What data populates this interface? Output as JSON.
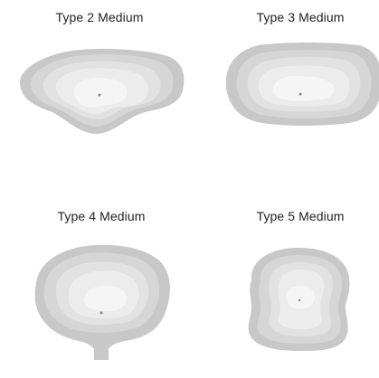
{
  "panels": [
    {
      "title": "Type 2 Medium"
    },
    {
      "title": "Type 3 Medium"
    },
    {
      "title": "Type 4 Medium"
    },
    {
      "title": "Type 5 Medium"
    }
  ],
  "colors": {
    "outer": "#c8c8c8",
    "ring2": "#d6d6d6",
    "ring3": "#e2e2e2",
    "ring4": "#ececec",
    "inner": "#f5f5f5",
    "center_dot": "#888888",
    "text": "#222222"
  }
}
